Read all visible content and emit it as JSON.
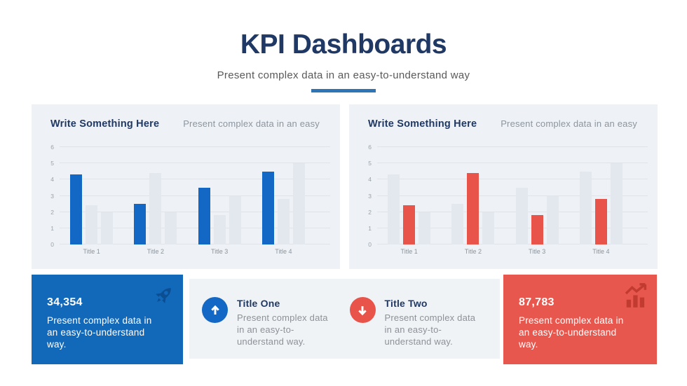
{
  "header": {
    "title": "KPI Dashboards",
    "subtitle": "Present complex data in an easy-to-understand way"
  },
  "colors": {
    "navy": "#1f3864",
    "divider_blue": "#2e75b6",
    "accent_blue": "#1268c4",
    "accent_red": "#e8534a",
    "gray_bar": "#e3e8ee",
    "panel_bg": "#eef1f5"
  },
  "chart_data": [
    {
      "type": "bar",
      "title": "Write Something Here",
      "subtitle": "Present complex data in an easy",
      "categories": [
        "Title 1",
        "Title 2",
        "Title 3",
        "Title 4"
      ],
      "series": [
        {
          "name": "highlight-blue",
          "color": "#1268c4",
          "values": [
            4.3,
            2.5,
            3.5,
            4.5
          ]
        },
        {
          "name": "gray-a",
          "color": "#e3e8ee",
          "values": [
            2.4,
            4.4,
            1.8,
            2.8
          ]
        },
        {
          "name": "gray-b",
          "color": "#e3e8ee",
          "values": [
            2.0,
            2.0,
            3.0,
            5.0
          ]
        }
      ],
      "ylim": [
        0,
        6
      ],
      "yticks": [
        0,
        1,
        2,
        3,
        4,
        5,
        6
      ],
      "grid": true,
      "legend": false
    },
    {
      "type": "bar",
      "title": "Write Something Here",
      "subtitle": "Present complex data in an easy",
      "categories": [
        "Title 1",
        "Title 2",
        "Title 3",
        "Title 4"
      ],
      "series": [
        {
          "name": "gray-a",
          "color": "#e3e8ee",
          "values": [
            4.3,
            2.5,
            3.5,
            4.5
          ]
        },
        {
          "name": "highlight-red",
          "color": "#e8534a",
          "values": [
            2.4,
            4.4,
            1.8,
            2.8
          ]
        },
        {
          "name": "gray-b",
          "color": "#e3e8ee",
          "values": [
            2.0,
            2.0,
            3.0,
            5.0
          ]
        }
      ],
      "ylim": [
        0,
        6
      ],
      "yticks": [
        0,
        1,
        2,
        3,
        4,
        5,
        6
      ],
      "grid": true,
      "legend": false
    }
  ],
  "stat_cards": {
    "left": {
      "value": "34,354",
      "description": "Present complex data in an easy-to-understand way.",
      "icon": "rocket-icon",
      "bg": "#1268b9"
    },
    "right": {
      "value": "87,783",
      "description": "Present complex data in an easy-to-understand way.",
      "icon": "growth-chart-icon",
      "bg": "#e8574e"
    }
  },
  "features": [
    {
      "title": "Title One",
      "description": "Present complex data in an easy-to-understand way.",
      "icon": "arrow-up-icon",
      "color": "#1268c4"
    },
    {
      "title": "Title Two",
      "description": "Present complex data in an easy-to-understand way.",
      "icon": "arrow-down-icon",
      "color": "#e8534a"
    }
  ]
}
